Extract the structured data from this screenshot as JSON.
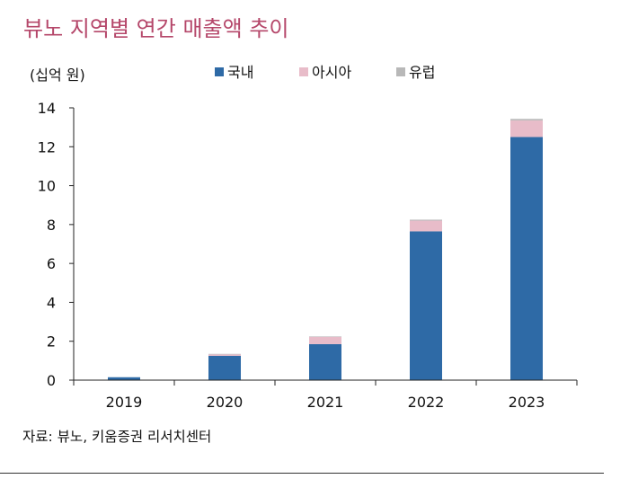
{
  "title": "뷰노 지역별 연간 매출액 추이",
  "source": "자료: 뷰노, 키움증권 리서치센터",
  "colors": {
    "title": "#b5476a",
    "domestic": "#2e6aa6",
    "asia": "#e8bcc9",
    "europe": "#b8b8b8"
  },
  "chart_data": {
    "type": "bar",
    "stacked": true,
    "unit_label": "(십억 원)",
    "categories": [
      "2019",
      "2020",
      "2021",
      "2022",
      "2023"
    ],
    "series": [
      {
        "name": "국내",
        "color": "#2e6aa6",
        "values": [
          0.15,
          1.25,
          1.85,
          7.65,
          12.5
        ]
      },
      {
        "name": "아시아",
        "color": "#e8bcc9",
        "values": [
          0.0,
          0.08,
          0.38,
          0.55,
          0.85
        ]
      },
      {
        "name": "유럽",
        "color": "#b8b8b8",
        "values": [
          0.0,
          0.02,
          0.02,
          0.05,
          0.08
        ]
      }
    ],
    "yticks": [
      0,
      2,
      4,
      6,
      8,
      10,
      12,
      14
    ],
    "ylim": [
      0,
      14
    ],
    "legend": "top-center"
  }
}
